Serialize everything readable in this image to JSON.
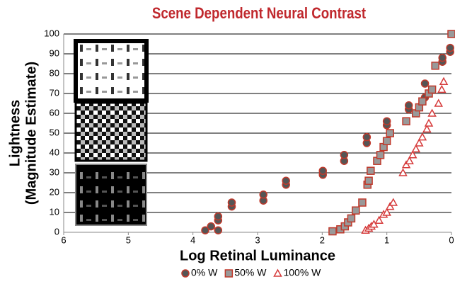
{
  "chart_data": {
    "type": "scatter",
    "title": "Scene Dependent Neural Contrast",
    "x_label": "Log Retinal Luminance",
    "y_label": [
      "Lightness",
      "(Magnitude Estimate)"
    ],
    "xlim": [
      6,
      0
    ],
    "ylim": [
      0,
      100
    ],
    "xticks": [
      6,
      5,
      4,
      3,
      2,
      1,
      0
    ],
    "yticks": [
      0,
      10,
      20,
      30,
      40,
      50,
      60,
      70,
      80,
      90,
      100
    ],
    "grid": "y",
    "legend": "bottom",
    "series": [
      {
        "name": "0% W",
        "marker": "circle",
        "color": "#555555",
        "edgecolor": "#c0392b",
        "x": [
          3.81,
          3.72,
          3.61,
          3.61,
          3.61,
          3.4,
          3.4,
          2.91,
          2.91,
          2.56,
          2.56,
          1.99,
          1.99,
          1.66,
          1.66,
          1.31,
          1.31,
          1.0,
          1.0,
          0.66,
          0.66,
          0.41,
          0.41,
          0.14,
          0.14,
          0.02,
          0.02
        ],
        "values": [
          1,
          3,
          1,
          6,
          8,
          13,
          15,
          16,
          19,
          24,
          26,
          29,
          31,
          36,
          39,
          45,
          48,
          54,
          56,
          62,
          64,
          68,
          75,
          86,
          88,
          91,
          93
        ]
      },
      {
        "name": "50% W",
        "marker": "square",
        "color": "#999999",
        "edgecolor": "#c0392b",
        "x": [
          1.84,
          1.72,
          1.65,
          1.6,
          1.55,
          1.48,
          1.38,
          1.3,
          1.28,
          1.25,
          1.15,
          1.1,
          1.05,
          1.0,
          0.95,
          0.7,
          0.55,
          0.5,
          0.45,
          0.35,
          0.3,
          0.25,
          0.0
        ],
        "values": [
          0.5,
          1.5,
          3,
          5,
          7,
          11,
          15,
          24,
          26,
          31,
          36,
          39,
          43,
          46,
          50,
          56,
          60,
          63,
          66,
          70,
          72,
          84,
          100
        ]
      },
      {
        "name": "100% W",
        "marker": "triangle",
        "color": "#ffffff",
        "edgecolor": "#d63b3b",
        "x": [
          1.33,
          1.28,
          1.24,
          1.2,
          1.12,
          1.05,
          1.0,
          0.95,
          0.9,
          0.75,
          0.7,
          0.65,
          0.6,
          0.55,
          0.5,
          0.45,
          0.38,
          0.35,
          0.3,
          0.2,
          0.15,
          0.12
        ],
        "values": [
          1,
          2,
          3,
          4,
          6,
          9,
          10,
          13,
          15,
          30,
          34,
          36,
          39,
          42,
          45,
          48,
          52,
          55,
          60,
          65,
          72,
          76
        ]
      }
    ]
  }
}
